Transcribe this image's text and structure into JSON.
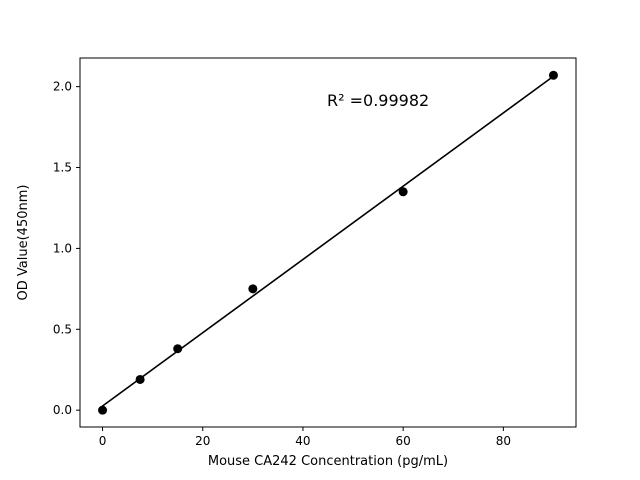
{
  "chart_data": {
    "type": "scatter",
    "title": "",
    "xlabel": "Mouse CA242 Concentration (pg/mL)",
    "ylabel": "OD Value(450nm)",
    "x": [
      0,
      7.5,
      15,
      30,
      60,
      90
    ],
    "y": [
      0.0,
      0.19,
      0.38,
      0.75,
      1.35,
      2.07
    ],
    "fit_line": {
      "x": [
        0,
        90
      ],
      "y": [
        0.026,
        2.064
      ]
    },
    "annotation": {
      "text": "R² =0.99982",
      "x": 55,
      "y": 1.88
    },
    "xlim": [
      -4.5,
      94.5
    ],
    "ylim": [
      -0.104,
      2.177
    ],
    "xticks": [
      0,
      20,
      40,
      60,
      80
    ],
    "xtick_labels": [
      "0",
      "20",
      "40",
      "60",
      "80"
    ],
    "yticks": [
      0.0,
      0.5,
      1.0,
      1.5,
      2.0
    ],
    "ytick_labels": [
      "0.0",
      "0.5",
      "1.0",
      "1.5",
      "2.0"
    ],
    "legend": "none",
    "grid": false,
    "marker_color": "#000000",
    "line_color": "#000000",
    "axis_color": "#000000",
    "background_color": "#ffffff"
  }
}
